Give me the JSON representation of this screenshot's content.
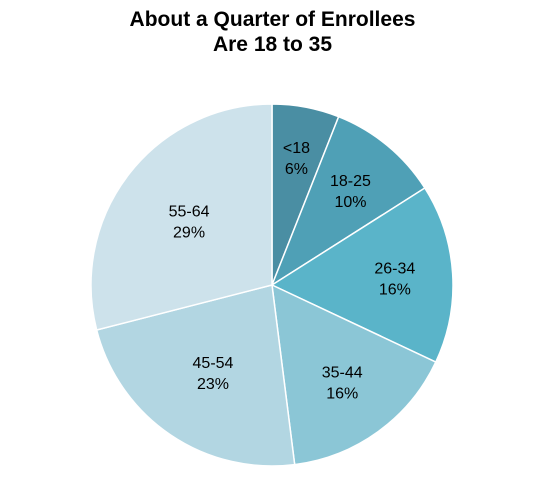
{
  "chart_data": {
    "type": "pie",
    "title_lines": [
      "About a Quarter of Enrollees",
      "Are 18 to 35"
    ],
    "slices": [
      {
        "label": "<18",
        "value": 6,
        "value_label": "6%",
        "color": "#4a8ea3"
      },
      {
        "label": "18-25",
        "value": 10,
        "value_label": "10%",
        "color": "#4fa0b6"
      },
      {
        "label": "26-34",
        "value": 16,
        "value_label": "16%",
        "color": "#5ab4c9"
      },
      {
        "label": "35-44",
        "value": 16,
        "value_label": "16%",
        "color": "#8bc6d6"
      },
      {
        "label": "45-54",
        "value": 23,
        "value_label": "23%",
        "color": "#b2d6e2"
      },
      {
        "label": "55-64",
        "value": 29,
        "value_label": "29%",
        "color": "#cde2eb"
      }
    ]
  }
}
